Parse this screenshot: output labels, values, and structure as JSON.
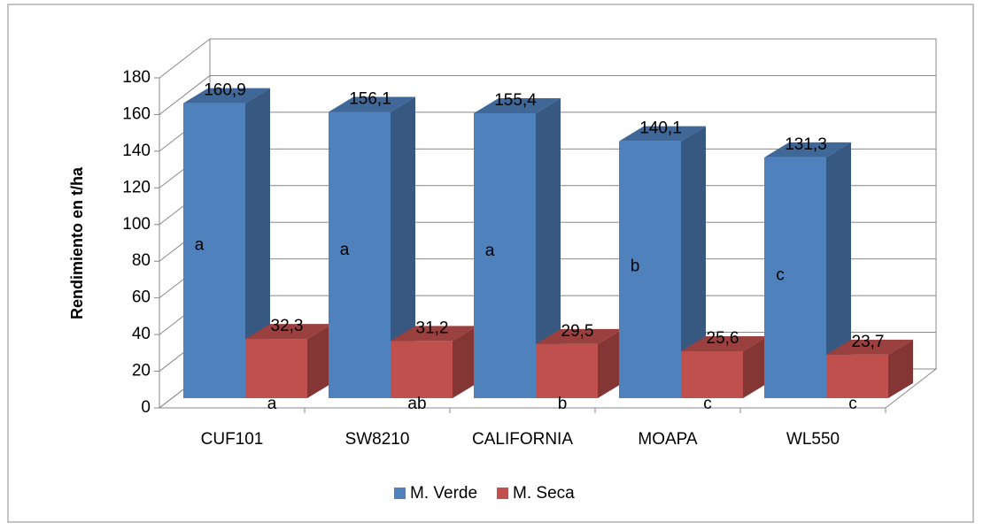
{
  "chart_data": {
    "type": "bar3d",
    "y_label": "Rendimiento en t/ha",
    "categories": [
      "CUF101",
      "SW8210",
      "CALIFORNIA",
      "MOAPA",
      "WL550"
    ],
    "series": [
      {
        "name": "M. Verde",
        "color": "#4f81bd",
        "values": [
          160.9,
          156.1,
          155.4,
          140.1,
          131.3
        ],
        "value_labels": [
          "160,9",
          "156,1",
          "155,4",
          "140,1",
          "131,3"
        ],
        "letters": [
          "a",
          "a",
          "a",
          "b",
          "c"
        ]
      },
      {
        "name": "M. Seca",
        "color": "#c0504d",
        "values": [
          32.3,
          31.2,
          29.5,
          25.6,
          23.7
        ],
        "value_labels": [
          "32,3",
          "31,2",
          "29,5",
          "25,6",
          "23,7"
        ],
        "letters": [
          "a",
          "ab",
          "b",
          "c",
          "c"
        ]
      }
    ],
    "ylim": [
      0,
      180
    ],
    "yticks": [
      0,
      20,
      40,
      60,
      80,
      100,
      120,
      140,
      160,
      180
    ],
    "grid": true,
    "legend": "bottom"
  }
}
